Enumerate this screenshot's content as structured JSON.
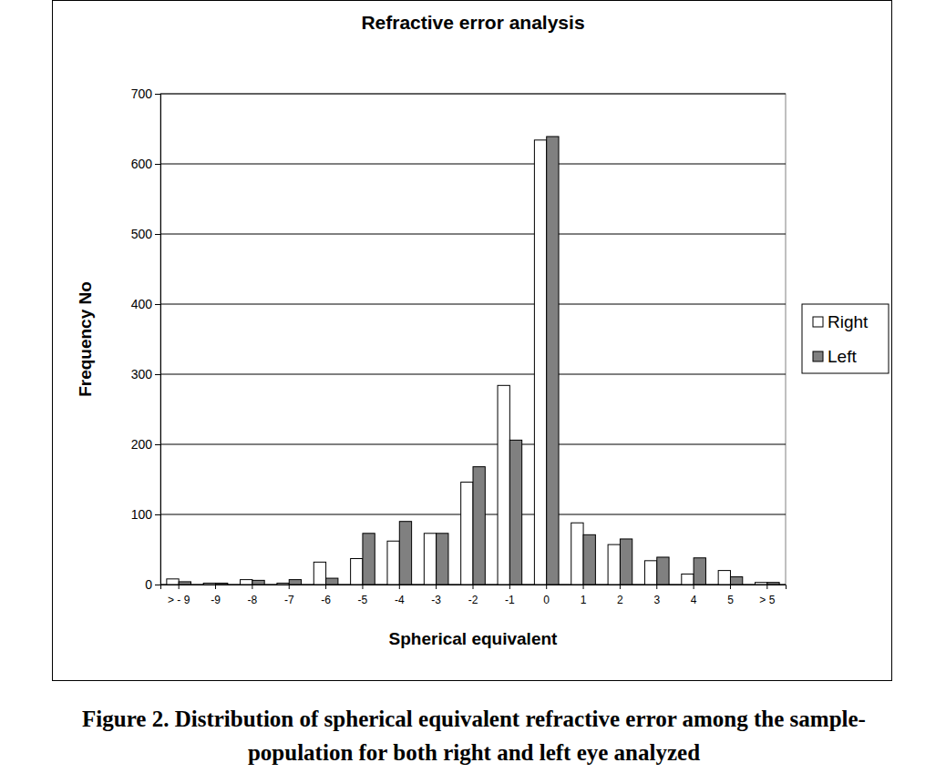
{
  "chart_data": {
    "type": "bar",
    "title": "Refractive error analysis",
    "x_label": "Spherical equivalent",
    "y_label": "Frequency No",
    "caption": [
      "Figure 2. Distribution of spherical equivalent refractive error among the sample-",
      "population for both right and left eye analyzed"
    ],
    "categories": [
      "> - 9",
      "-9",
      "-8",
      "-7",
      "-6",
      "-5",
      "-4",
      "-3",
      "-2",
      "-1",
      "0",
      "1",
      "2",
      "3",
      "4",
      "5",
      "> 5"
    ],
    "series": [
      {
        "name": "Right",
        "color": "#ffffff",
        "values": [
          8,
          2,
          7,
          2,
          32,
          37,
          62,
          73,
          146,
          284,
          634,
          88,
          57,
          34,
          15,
          20,
          3
        ]
      },
      {
        "name": "Left",
        "color": "#808080",
        "values": [
          4,
          2,
          6,
          7,
          9,
          73,
          90,
          73,
          168,
          206,
          639,
          71,
          65,
          39,
          38,
          11,
          3
        ]
      }
    ],
    "ylim": [
      0,
      700
    ],
    "yticks": [
      0,
      100,
      200,
      300,
      400,
      500,
      600,
      700
    ],
    "grid": true,
    "legend": "right"
  }
}
